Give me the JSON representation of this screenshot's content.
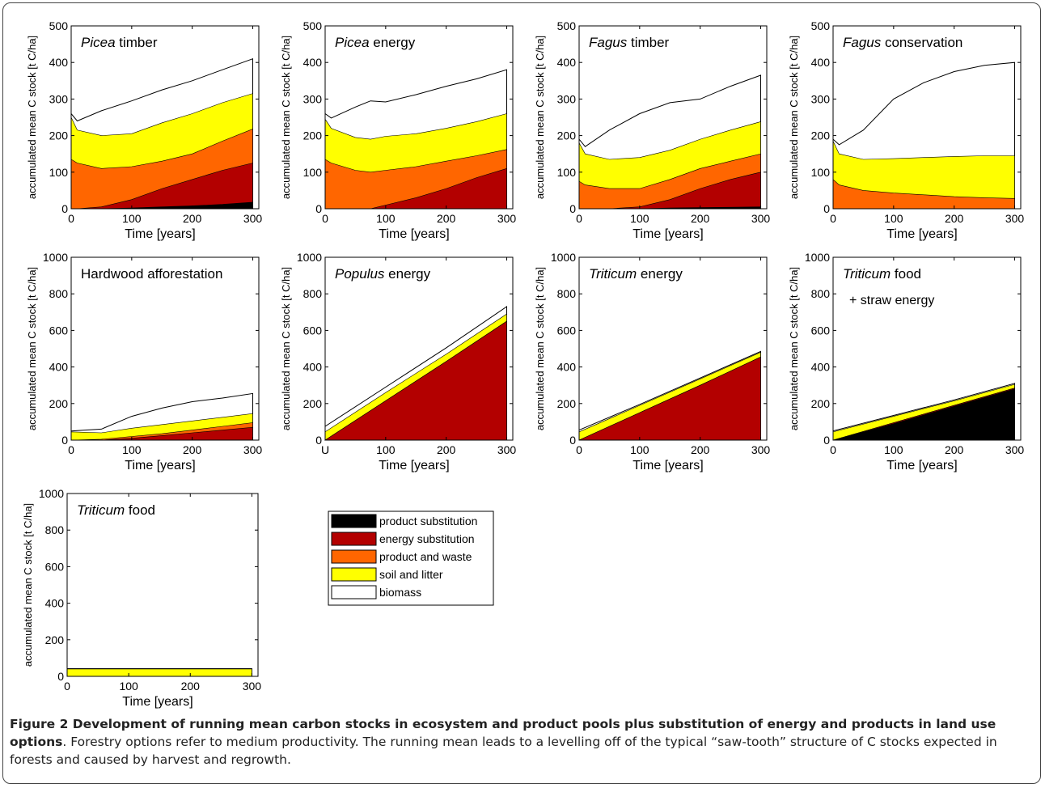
{
  "figure_caption": {
    "bold": "Figure 2 Development of running mean carbon stocks in ecosystem and product pools plus substitution of energy and products in land use options",
    "rest": ". Forestry options refer to medium productivity. The running mean leads to a levelling off of the typical “saw-tooth” structure of C stocks expected in forests and caused by harvest and regrowth."
  },
  "axis_text": {
    "xlabel": "Time [years]",
    "ylabel": "accumulated mean C stock [t C/ha]"
  },
  "colors": {
    "product_substitution": "#000000",
    "energy_substitution": "#b30000",
    "product_and_waste": "#ff6600",
    "soil_and_litter": "#ffff00",
    "biomass": "#ffffff"
  },
  "legend": {
    "entries": [
      {
        "label": "product substitution",
        "key": "product_substitution"
      },
      {
        "label": "energy substitution",
        "key": "energy_substitution"
      },
      {
        "label": "product and waste",
        "key": "product_and_waste"
      },
      {
        "label": "soil and litter",
        "key": "soil_and_litter"
      },
      {
        "label": "biomass",
        "key": "biomass"
      }
    ]
  },
  "chart_data": [
    {
      "type": "area",
      "title_italic": "Picea",
      "title_rest": " timber",
      "x": [
        0,
        10,
        50,
        100,
        150,
        200,
        250,
        300
      ],
      "xlim": [
        0,
        310
      ],
      "ylim": [
        0,
        500
      ],
      "xticks": [
        0,
        100,
        200,
        300
      ],
      "yticks": [
        0,
        100,
        200,
        300,
        400,
        500
      ],
      "series": [
        {
          "key": "product_substitution",
          "values": [
            0,
            0,
            0,
            2,
            5,
            8,
            12,
            18
          ]
        },
        {
          "key": "energy_substitution",
          "values": [
            0,
            0,
            5,
            25,
            55,
            80,
            105,
            125
          ]
        },
        {
          "key": "product_and_waste",
          "values": [
            135,
            125,
            110,
            115,
            130,
            150,
            185,
            218
          ]
        },
        {
          "key": "soil_and_litter",
          "values": [
            250,
            215,
            200,
            205,
            235,
            260,
            290,
            315
          ]
        },
        {
          "key": "biomass",
          "values": [
            260,
            240,
            268,
            295,
            325,
            350,
            380,
            410
          ]
        }
      ]
    },
    {
      "type": "area",
      "title_italic": "Picea",
      "title_rest": " energy",
      "x": [
        0,
        10,
        50,
        75,
        100,
        150,
        200,
        250,
        300
      ],
      "xlim": [
        0,
        310
      ],
      "ylim": [
        0,
        500
      ],
      "xticks": [
        0,
        100,
        200,
        300
      ],
      "yticks": [
        0,
        100,
        200,
        300,
        400,
        500
      ],
      "series": [
        {
          "key": "product_substitution",
          "values": [
            0,
            0,
            0,
            0,
            0,
            0,
            0,
            0,
            0
          ]
        },
        {
          "key": "energy_substitution",
          "values": [
            0,
            0,
            0,
            0,
            10,
            30,
            55,
            85,
            110
          ]
        },
        {
          "key": "product_and_waste",
          "values": [
            135,
            125,
            105,
            100,
            105,
            115,
            130,
            145,
            162
          ]
        },
        {
          "key": "soil_and_litter",
          "values": [
            245,
            220,
            195,
            190,
            198,
            205,
            220,
            238,
            260
          ]
        },
        {
          "key": "biomass",
          "values": [
            260,
            248,
            278,
            295,
            292,
            312,
            335,
            355,
            380
          ]
        }
      ]
    },
    {
      "type": "area",
      "title_italic": "Fagus",
      "title_rest": " timber",
      "x": [
        0,
        10,
        50,
        100,
        150,
        200,
        250,
        300
      ],
      "xlim": [
        0,
        310
      ],
      "ylim": [
        0,
        500
      ],
      "xticks": [
        0,
        100,
        200,
        300
      ],
      "yticks": [
        0,
        100,
        200,
        300,
        400,
        500
      ],
      "series": [
        {
          "key": "product_substitution",
          "values": [
            0,
            0,
            0,
            0,
            2,
            3,
            4,
            5
          ]
        },
        {
          "key": "energy_substitution",
          "values": [
            0,
            0,
            0,
            5,
            25,
            55,
            80,
            100
          ]
        },
        {
          "key": "product_and_waste",
          "values": [
            75,
            65,
            55,
            55,
            80,
            110,
            130,
            150
          ]
        },
        {
          "key": "soil_and_litter",
          "values": [
            180,
            150,
            135,
            140,
            160,
            190,
            215,
            238
          ]
        },
        {
          "key": "biomass",
          "values": [
            190,
            170,
            215,
            260,
            290,
            300,
            335,
            365
          ]
        }
      ]
    },
    {
      "type": "area",
      "title_italic": "Fagus",
      "title_rest": " conservation",
      "x": [
        0,
        10,
        50,
        100,
        150,
        200,
        250,
        300
      ],
      "xlim": [
        0,
        310
      ],
      "ylim": [
        0,
        500
      ],
      "xticks": [
        0,
        100,
        200,
        300
      ],
      "yticks": [
        0,
        100,
        200,
        300,
        400,
        500
      ],
      "series": [
        {
          "key": "product_substitution",
          "values": [
            0,
            0,
            0,
            0,
            0,
            0,
            0,
            0
          ]
        },
        {
          "key": "energy_substitution",
          "values": [
            0,
            0,
            0,
            0,
            0,
            0,
            0,
            0
          ]
        },
        {
          "key": "product_and_waste",
          "values": [
            80,
            65,
            50,
            43,
            38,
            33,
            30,
            28
          ]
        },
        {
          "key": "soil_and_litter",
          "values": [
            185,
            150,
            135,
            137,
            140,
            143,
            145,
            145
          ]
        },
        {
          "key": "biomass",
          "values": [
            190,
            175,
            215,
            300,
            345,
            375,
            392,
            400
          ]
        }
      ]
    },
    {
      "type": "area",
      "title_italic": "",
      "title_rest": "Hardwood afforestation",
      "x": [
        0,
        50,
        100,
        150,
        200,
        250,
        300
      ],
      "xlim": [
        0,
        310
      ],
      "ylim": [
        0,
        1000
      ],
      "xticks": [
        0,
        100,
        200,
        300
      ],
      "yticks": [
        0,
        200,
        400,
        600,
        800,
        1000
      ],
      "series": [
        {
          "key": "product_substitution",
          "values": [
            0,
            0,
            0,
            0,
            0,
            0,
            0
          ]
        },
        {
          "key": "energy_substitution",
          "values": [
            0,
            0,
            10,
            25,
            40,
            55,
            70
          ]
        },
        {
          "key": "product_and_waste",
          "values": [
            0,
            5,
            20,
            35,
            55,
            75,
            95
          ]
        },
        {
          "key": "soil_and_litter",
          "values": [
            45,
            40,
            65,
            85,
            105,
            125,
            145
          ]
        },
        {
          "key": "biomass",
          "values": [
            50,
            60,
            130,
            175,
            210,
            230,
            255
          ]
        }
      ]
    },
    {
      "type": "area",
      "title_italic": "Populus",
      "title_rest": "  energy",
      "x": [
        0,
        100,
        200,
        300
      ],
      "xlim": [
        0,
        310
      ],
      "ylim": [
        0,
        1000
      ],
      "xticks": [
        0,
        100,
        200,
        300
      ],
      "xtick_labels": [
        "U",
        "100",
        "200",
        "300"
      ],
      "yticks": [
        0,
        200,
        400,
        600,
        800,
        1000
      ],
      "series": [
        {
          "key": "product_substitution",
          "values": [
            0,
            0,
            0,
            0
          ]
        },
        {
          "key": "energy_substitution",
          "values": [
            0,
            215,
            430,
            650
          ]
        },
        {
          "key": "product_and_waste",
          "values": [
            0,
            215,
            430,
            650
          ]
        },
        {
          "key": "soil_and_litter",
          "values": [
            45,
            260,
            470,
            690
          ]
        },
        {
          "key": "biomass",
          "values": [
            75,
            290,
            505,
            730
          ]
        }
      ]
    },
    {
      "type": "area",
      "title_italic": "Triticum",
      "title_rest": " energy",
      "x": [
        0,
        100,
        200,
        300
      ],
      "xlim": [
        0,
        310
      ],
      "ylim": [
        0,
        1000
      ],
      "xticks": [
        0,
        100,
        200,
        300
      ],
      "yticks": [
        0,
        200,
        400,
        600,
        800,
        1000
      ],
      "series": [
        {
          "key": "product_substitution",
          "values": [
            0,
            0,
            0,
            0
          ]
        },
        {
          "key": "energy_substitution",
          "values": [
            0,
            150,
            300,
            455
          ]
        },
        {
          "key": "product_and_waste",
          "values": [
            0,
            150,
            300,
            455
          ]
        },
        {
          "key": "soil_and_litter",
          "values": [
            45,
            190,
            335,
            480
          ]
        },
        {
          "key": "biomass",
          "values": [
            55,
            195,
            340,
            485
          ]
        }
      ]
    },
    {
      "type": "area",
      "title_italic": "Triticum",
      "title_rest": " food",
      "subtitle": "+ straw energy",
      "x": [
        0,
        100,
        200,
        300
      ],
      "xlim": [
        0,
        310
      ],
      "ylim": [
        0,
        1000
      ],
      "xticks": [
        0,
        100,
        200,
        300
      ],
      "yticks": [
        0,
        200,
        400,
        600,
        800,
        1000
      ],
      "series": [
        {
          "key": "product_substitution",
          "values": [
            0,
            90,
            185,
            280
          ]
        },
        {
          "key": "energy_substitution",
          "values": [
            0,
            95,
            190,
            285
          ]
        },
        {
          "key": "product_and_waste",
          "values": [
            0,
            95,
            190,
            285
          ]
        },
        {
          "key": "soil_and_litter",
          "values": [
            45,
            130,
            215,
            305
          ]
        },
        {
          "key": "biomass",
          "values": [
            50,
            135,
            220,
            310
          ]
        }
      ]
    },
    {
      "type": "area",
      "title_italic": "Triticum",
      "title_rest": " food",
      "x": [
        0,
        100,
        200,
        300
      ],
      "xlim": [
        0,
        310
      ],
      "ylim": [
        0,
        1000
      ],
      "xticks": [
        0,
        100,
        200,
        300
      ],
      "yticks": [
        0,
        200,
        400,
        600,
        800,
        1000
      ],
      "series": [
        {
          "key": "product_substitution",
          "values": [
            0,
            0,
            0,
            0
          ]
        },
        {
          "key": "energy_substitution",
          "values": [
            0,
            0,
            0,
            0
          ]
        },
        {
          "key": "product_and_waste",
          "values": [
            0,
            0,
            0,
            0
          ]
        },
        {
          "key": "soil_and_litter",
          "values": [
            40,
            40,
            40,
            40
          ]
        },
        {
          "key": "biomass",
          "values": [
            42,
            42,
            42,
            42
          ]
        }
      ]
    }
  ]
}
